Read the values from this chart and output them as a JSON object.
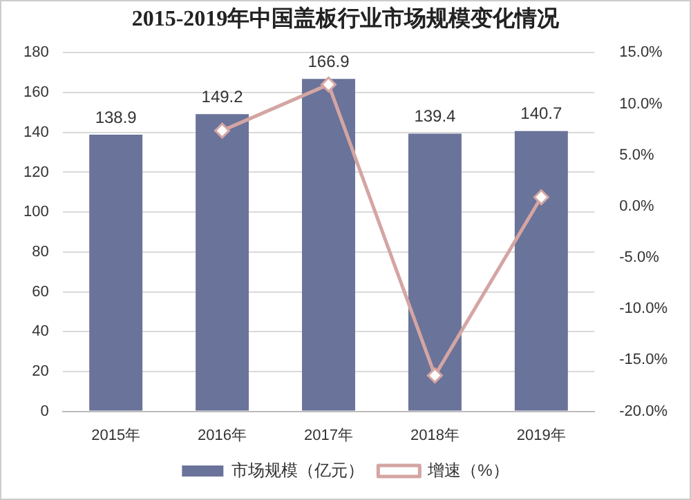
{
  "chart_data": {
    "type": "bar",
    "title": "2015-2019年中国盖板行业市场规模变化情况",
    "categories": [
      "2015年",
      "2016年",
      "2017年",
      "2018年",
      "2019年"
    ],
    "series": [
      {
        "name": "市场规模（亿元）",
        "color": "#6a7399",
        "values": [
          138.9,
          149.2,
          166.9,
          139.4,
          140.7
        ],
        "value_labels": [
          "138.9",
          "149.2",
          "166.9",
          "139.4",
          "140.7"
        ]
      },
      {
        "name": "增速（%）",
        "type": "line",
        "axis": "y2",
        "color": "#d4a5a3",
        "marker": "diamond",
        "values": [
          null,
          7.4,
          11.9,
          -16.5,
          0.9
        ]
      }
    ],
    "ylim": [
      0,
      180
    ],
    "yticks": [
      0,
      20,
      40,
      60,
      80,
      100,
      120,
      140,
      160,
      180
    ],
    "y2lim": [
      -20,
      15
    ],
    "y2ticks": [
      {
        "value": -20,
        "label": "-20.0%"
      },
      {
        "value": -15,
        "label": "-15.0%"
      },
      {
        "value": -10,
        "label": "-10.0%"
      },
      {
        "value": -5,
        "label": "-5.0%"
      },
      {
        "value": 0,
        "label": "0.0%"
      },
      {
        "value": 5,
        "label": "5.0%"
      },
      {
        "value": 10,
        "label": "10.0%"
      },
      {
        "value": 15,
        "label": "15.0%"
      }
    ],
    "grid": "y",
    "legend": "bottom"
  }
}
